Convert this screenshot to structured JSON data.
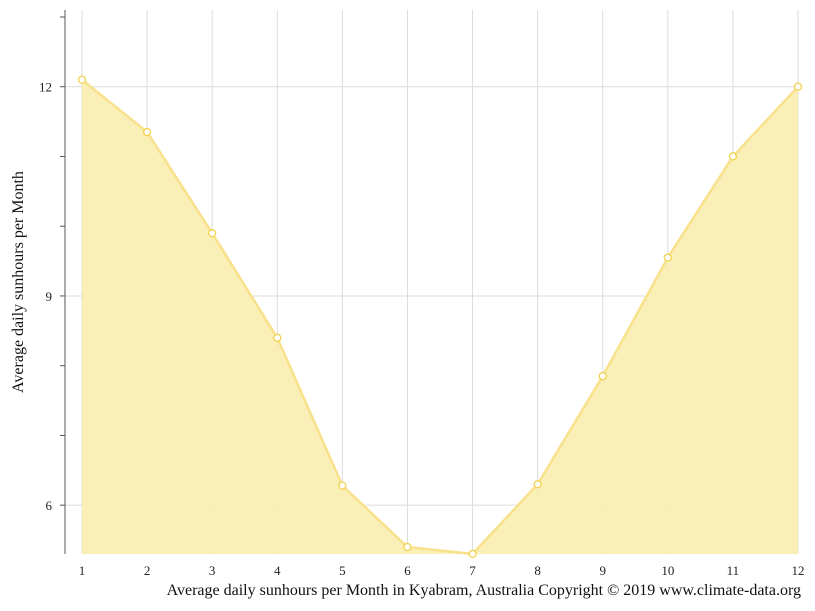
{
  "chart_data": {
    "type": "area",
    "x": [
      1,
      2,
      3,
      4,
      5,
      6,
      7,
      8,
      9,
      10,
      11,
      12
    ],
    "values": [
      12.1,
      11.35,
      9.9,
      8.4,
      6.28,
      5.4,
      5.3,
      6.3,
      7.85,
      9.55,
      11.0,
      12.0
    ],
    "ylabel": "Average daily sunhours per Month",
    "xlabel": "",
    "ylim": [
      5.3,
      13.1
    ],
    "xlim": [
      1,
      12
    ],
    "yticks": [
      6,
      9,
      12
    ],
    "y_minor_ticks": [
      7,
      8,
      10,
      11,
      13
    ],
    "grid": true,
    "fill_color": "#faeeb0",
    "line_color": "#f8e18a",
    "marker_stroke": "#f1d24e"
  },
  "caption": "Average daily sunhours per Month in Kyabram, Australia Copyright © 2019 www.climate-data.org"
}
